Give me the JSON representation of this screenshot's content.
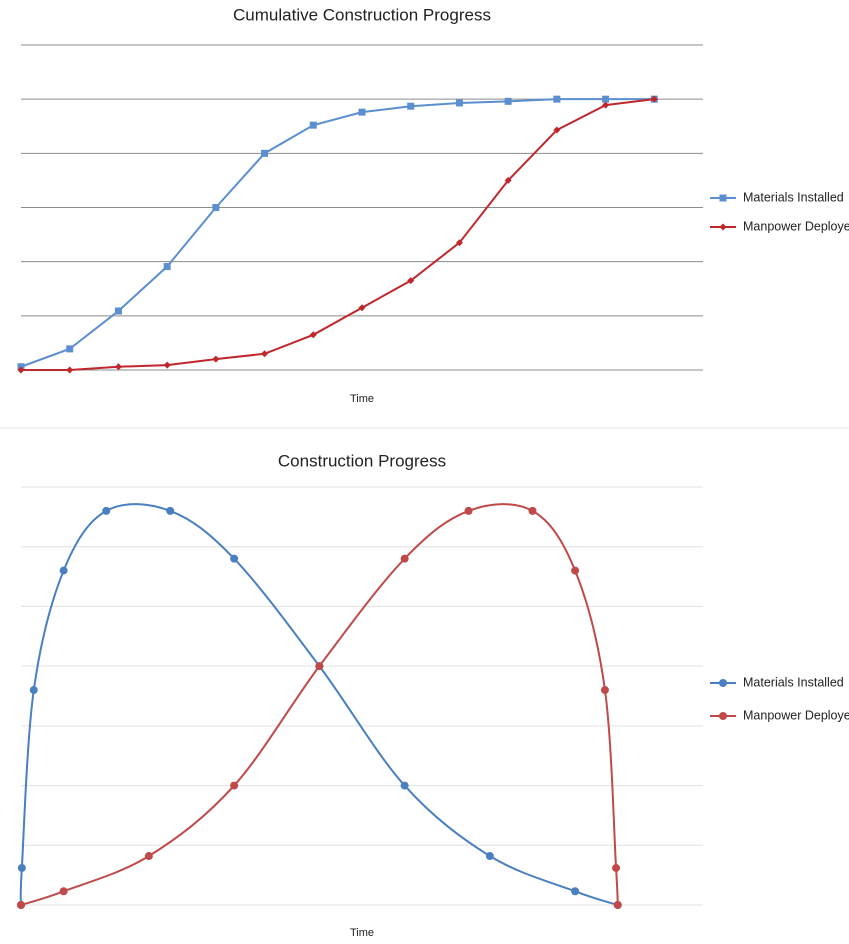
{
  "chart_data": [
    {
      "type": "line",
      "title": "Cumulative Construction Progress",
      "x_label": "Time",
      "x": [
        0,
        1,
        2,
        3,
        4,
        5,
        6,
        7,
        8,
        9,
        10,
        11,
        12,
        13
      ],
      "xlim": [
        0,
        14
      ],
      "ylim": [
        0,
        6
      ],
      "grid_lines": [
        0,
        1,
        2,
        3,
        4,
        5,
        6
      ],
      "grid": true,
      "smooth": false,
      "legend": "right",
      "series": [
        {
          "name": "Materials Installed",
          "color": "#5b8fd0",
          "marker": "square",
          "values": [
            0.06,
            0.39,
            1.09,
            1.91,
            3.0,
            4.0,
            4.52,
            4.76,
            4.87,
            4.93,
            4.96,
            5.0,
            5.0,
            5.0
          ]
        },
        {
          "name": "Manpower Deployed",
          "color": "#c0272d",
          "marker": "diamond",
          "values": [
            0,
            0,
            0.06,
            0.09,
            0.2,
            0.3,
            0.65,
            1.15,
            1.65,
            2.35,
            3.5,
            4.43,
            4.89,
            5.0
          ]
        }
      ]
    },
    {
      "type": "scatter",
      "title": "Construction Progress",
      "x_label": "Time",
      "xlim": [
        0,
        16
      ],
      "ylim": [
        0,
        7
      ],
      "grid_lines": [
        0,
        1,
        2,
        3,
        4,
        5,
        6,
        7
      ],
      "grid": true,
      "smooth": true,
      "legend": "right",
      "series": [
        {
          "name": "Materials Installed",
          "color": "#4a7fc0",
          "marker": "circle",
          "x": [
            0,
            0.02,
            0.3,
            1,
            2,
            3.5,
            5,
            7,
            9,
            11,
            13,
            14
          ],
          "values": [
            0,
            0.62,
            3.6,
            5.6,
            6.6,
            6.6,
            5.8,
            4.0,
            2.0,
            0.82,
            0.23,
            0
          ]
        },
        {
          "name": "Manpower Deployed",
          "color": "#c04a4a",
          "marker": "circle",
          "x": [
            0,
            1,
            3,
            5,
            7,
            9,
            10.5,
            12,
            13,
            13.7,
            13.96,
            14
          ],
          "values": [
            0,
            0.23,
            0.82,
            2.0,
            4.0,
            5.8,
            6.6,
            6.6,
            5.6,
            3.6,
            0.62,
            0
          ]
        }
      ]
    }
  ]
}
